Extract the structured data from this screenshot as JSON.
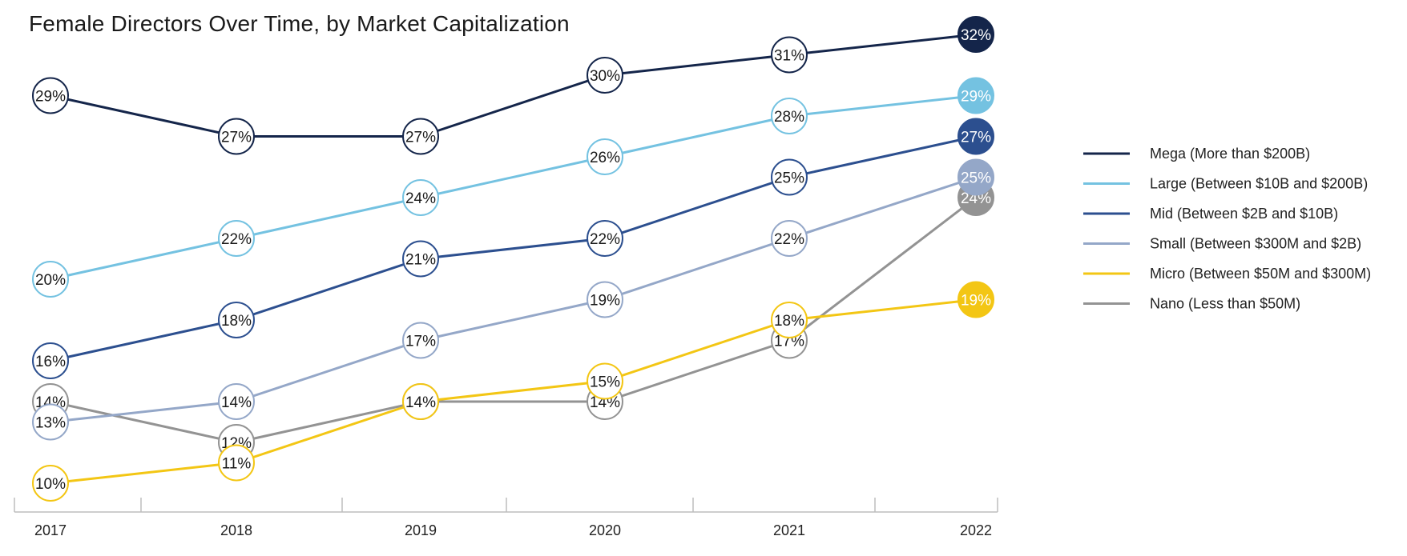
{
  "chart_data": {
    "type": "line",
    "title": "Female Directors Over Time, by Market Capitalization",
    "xlabel": "",
    "ylabel": "",
    "x": [
      "2017",
      "2018",
      "2019",
      "2020",
      "2021",
      "2022"
    ],
    "ylim": [
      10,
      32
    ],
    "grid": false,
    "legend_position": "right",
    "value_suffix": "%",
    "series": [
      {
        "name": "Mega (More than $200B)",
        "color": "#14254a",
        "values": [
          29,
          27,
          27,
          30,
          31,
          32
        ]
      },
      {
        "name": "Large (Between $10B and $200B)",
        "color": "#74c2e1",
        "values": [
          20,
          22,
          24,
          26,
          28,
          29
        ]
      },
      {
        "name": "Mid (Between $2B and $10B)",
        "color": "#2c4f8f",
        "values": [
          16,
          18,
          21,
          22,
          25,
          27
        ]
      },
      {
        "name": "Small (Between $300M and $2B)",
        "color": "#94a7c8",
        "values": [
          13,
          14,
          17,
          19,
          22,
          25
        ]
      },
      {
        "name": "Micro (Between $50M and $300M)",
        "color": "#f3c614",
        "values": [
          10,
          11,
          14,
          15,
          18,
          19
        ]
      },
      {
        "name": "Nano (Less than $50M)",
        "color": "#939393",
        "values": [
          14,
          12,
          14,
          14,
          17,
          24
        ]
      }
    ]
  }
}
